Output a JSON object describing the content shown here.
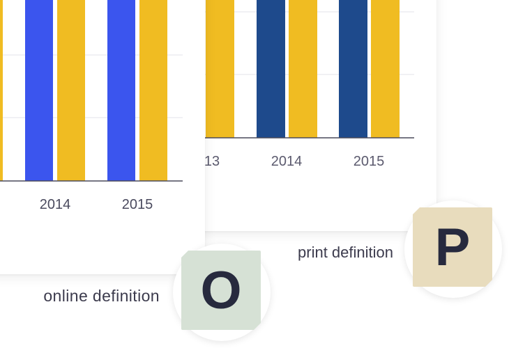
{
  "print_chart": {
    "categories": [
      "13",
      "2014",
      "2015"
    ],
    "colors": {
      "primary_bar": "#1e4a8c",
      "secondary_bar": "#f0bc22",
      "axis": "#4a4a5a",
      "grid": "#e3e3e8"
    }
  },
  "online_chart": {
    "categories": [
      "2014",
      "2015"
    ],
    "colors": {
      "primary_bar": "#3b55ee",
      "secondary_bar": "#f0bc22",
      "axis": "#4a4a5a",
      "grid": "#e3e3e8"
    }
  },
  "labels": {
    "print": "print definition",
    "online": "online definition"
  },
  "badges": {
    "print": {
      "letter": "P",
      "color": "#e8dcbd"
    },
    "online": {
      "letter": "O",
      "color": "#d6e1d5"
    }
  }
}
